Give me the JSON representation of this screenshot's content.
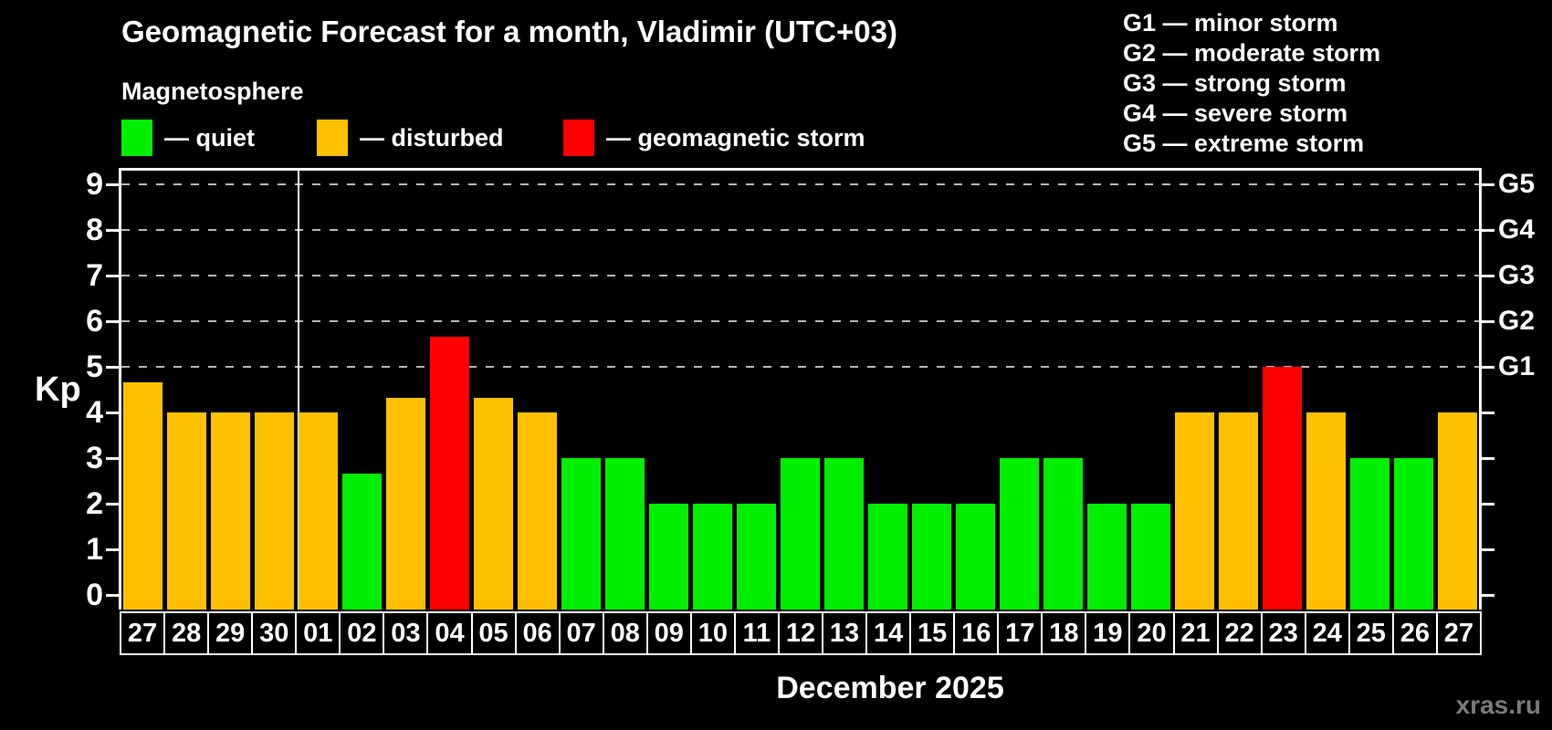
{
  "title": "Geomagnetic Forecast for a month, Vladimir (UTC+03)",
  "subtitle": "Magnetosphere",
  "colors": {
    "quiet": "#00ef00",
    "disturbed": "#ffc000",
    "storm": "#ff0000",
    "grid": "#b6b6b6",
    "axis": "#ffffff",
    "watermark": "#7a7a7a",
    "background": "#000000"
  },
  "legend": {
    "items": [
      {
        "status": "quiet",
        "label": "— quiet"
      },
      {
        "status": "disturbed",
        "label": "— disturbed"
      },
      {
        "status": "storm",
        "label": "— geomagnetic storm"
      }
    ]
  },
  "storm_scale_legend": [
    "G1 — minor storm",
    "G2 — moderate storm",
    "G3 — strong storm",
    "G4 — severe storm",
    "G5 — extreme storm"
  ],
  "axis": {
    "kp_label": "Kp",
    "y_ticks": [
      "0",
      "1",
      "2",
      "3",
      "4",
      "5",
      "6",
      "7",
      "8",
      "9"
    ]
  },
  "month_label": "December 2025",
  "watermark": "xras.ru",
  "chart_data": {
    "type": "bar",
    "title": "Geomagnetic Forecast for a month, Vladimir (UTC+03)",
    "xlabel": "December 2025",
    "ylabel": "Kp",
    "ylim": [
      0,
      9
    ],
    "grid": "dashed horizontal at Kp 5-9",
    "legend_position": "top-left",
    "categories": [
      "27",
      "28",
      "29",
      "30",
      "01",
      "02",
      "03",
      "04",
      "05",
      "06",
      "07",
      "08",
      "09",
      "10",
      "11",
      "12",
      "13",
      "14",
      "15",
      "16",
      "17",
      "18",
      "19",
      "20",
      "21",
      "22",
      "23",
      "24",
      "25",
      "26",
      "27"
    ],
    "values": [
      4.67,
      4,
      4,
      4,
      4,
      2.67,
      4.33,
      5.67,
      4.33,
      4,
      3,
      3,
      2,
      2,
      2,
      3,
      3,
      2,
      2,
      2,
      3,
      3,
      2,
      2,
      4,
      4,
      5,
      4,
      3,
      3,
      4
    ],
    "statuses": [
      "disturbed",
      "disturbed",
      "disturbed",
      "disturbed",
      "disturbed",
      "quiet",
      "disturbed",
      "storm",
      "disturbed",
      "disturbed",
      "quiet",
      "quiet",
      "quiet",
      "quiet",
      "quiet",
      "quiet",
      "quiet",
      "quiet",
      "quiet",
      "quiet",
      "quiet",
      "quiet",
      "quiet",
      "quiet",
      "disturbed",
      "disturbed",
      "storm",
      "disturbed",
      "quiet",
      "quiet",
      "disturbed"
    ],
    "gridlines_kp": [
      5,
      6,
      7,
      8,
      9
    ],
    "right_axis": [
      {
        "label": "G1",
        "kp": 5
      },
      {
        "label": "G2",
        "kp": 6
      },
      {
        "label": "G3",
        "kp": 7
      },
      {
        "label": "G4",
        "kp": 8
      },
      {
        "label": "G5",
        "kp": 9
      }
    ],
    "separator_after": 4
  }
}
